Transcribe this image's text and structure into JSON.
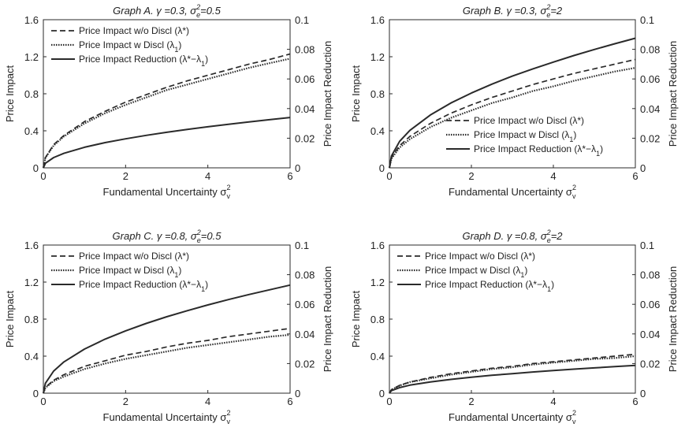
{
  "figure": {
    "background": "#ffffff",
    "line_color": "#2a2a2a"
  },
  "chart_data": [
    {
      "type": "line",
      "title": "Graph A. γ =0.3, σe2=0.5",
      "title_parts": {
        "prefix": "Graph A. γ =0.3, σ",
        "sub": "e",
        "sup": "2",
        "suffix": "=0.5"
      },
      "xlabel": "Fundamental Uncertainty σv2",
      "xlabel_parts": {
        "main": "Fundamental Uncertainty σ",
        "sub": "v",
        "sup": "2"
      },
      "ylabel": "Price Impact",
      "y2label": "Price Impact Reduction",
      "xlim": [
        0,
        6
      ],
      "ylim": [
        0,
        1.6
      ],
      "y2lim": [
        0,
        0.1
      ],
      "xticks": [
        "0",
        "2",
        "4",
        "6"
      ],
      "yticks": [
        "0",
        "0.4",
        "0.8",
        "1.2",
        "1.6"
      ],
      "y2ticks": [
        "0",
        "0.02",
        "0.04",
        "0.06",
        "0.08",
        "0.1"
      ],
      "legend_position": "top-left",
      "grid": false,
      "series": [
        {
          "name": "Price Impact w/o Discl (λ*)",
          "axis": "left",
          "style": "dashed",
          "x": [
            0,
            0.05,
            0.25,
            0.5,
            1,
            1.5,
            2,
            2.5,
            3,
            3.5,
            4,
            4.5,
            5,
            5.5,
            6
          ],
          "y": [
            0,
            0.11,
            0.25,
            0.35,
            0.5,
            0.61,
            0.71,
            0.79,
            0.87,
            0.94,
            1.0,
            1.06,
            1.12,
            1.17,
            1.23
          ]
        },
        {
          "name": "Price Impact w Discl (λ1)",
          "axis": "left",
          "style": "dotted",
          "x": [
            0,
            0.05,
            0.25,
            0.5,
            1,
            1.5,
            2,
            2.5,
            3,
            3.5,
            4,
            4.5,
            5,
            5.5,
            6
          ],
          "y": [
            0,
            0.11,
            0.24,
            0.34,
            0.48,
            0.59,
            0.68,
            0.76,
            0.84,
            0.9,
            0.96,
            1.02,
            1.08,
            1.13,
            1.18
          ]
        },
        {
          "name": "Price Impact Reduction (λ*−λ1)",
          "axis": "right",
          "style": "solid",
          "x": [
            0,
            0.05,
            0.25,
            0.5,
            1,
            1.5,
            2,
            2.5,
            3,
            3.5,
            4,
            4.5,
            5,
            5.5,
            6
          ],
          "y": [
            0,
            0.0031,
            0.0069,
            0.0098,
            0.0139,
            0.017,
            0.0196,
            0.0219,
            0.024,
            0.0259,
            0.0277,
            0.0294,
            0.031,
            0.0325,
            0.034
          ]
        }
      ]
    },
    {
      "type": "line",
      "title": "Graph B. γ =0.3, σe2=2",
      "title_parts": {
        "prefix": "Graph B. γ =0.3, σ",
        "sub": "e",
        "sup": "2",
        "suffix": "=2"
      },
      "xlabel": "Fundamental Uncertainty σv2",
      "xlabel_parts": {
        "main": "Fundamental Uncertainty σ",
        "sub": "v",
        "sup": "2"
      },
      "ylabel": "Price Impact",
      "y2label": "Price Impact Reduction",
      "xlim": [
        0,
        6
      ],
      "ylim": [
        0,
        1.6
      ],
      "y2lim": [
        0,
        0.1
      ],
      "xticks": [
        "0",
        "2",
        "4",
        "6"
      ],
      "yticks": [
        "0",
        "0.4",
        "0.8",
        "1.2",
        "1.6"
      ],
      "y2ticks": [
        "0",
        "0.02",
        "0.04",
        "0.06",
        "0.08",
        "0.1"
      ],
      "legend_position": "bottom-right",
      "grid": false,
      "series": [
        {
          "name": "Price Impact w/o Discl (λ*)",
          "axis": "left",
          "style": "dashed",
          "x": [
            0,
            0.05,
            0.25,
            0.5,
            1,
            1.5,
            2,
            2.5,
            3,
            3.5,
            4,
            4.5,
            5,
            5.5,
            6
          ],
          "y": [
            0,
            0.11,
            0.24,
            0.34,
            0.48,
            0.59,
            0.68,
            0.76,
            0.83,
            0.9,
            0.96,
            1.02,
            1.07,
            1.12,
            1.17
          ]
        },
        {
          "name": "Price Impact w Discl (λ1)",
          "axis": "left",
          "style": "dotted",
          "x": [
            0,
            0.05,
            0.25,
            0.5,
            1,
            1.5,
            2,
            2.5,
            3,
            3.5,
            4,
            4.5,
            5,
            5.5,
            6
          ],
          "y": [
            0,
            0.1,
            0.22,
            0.31,
            0.44,
            0.54,
            0.62,
            0.7,
            0.76,
            0.83,
            0.88,
            0.94,
            0.99,
            1.04,
            1.08
          ]
        },
        {
          "name": "Price Impact Reduction (λ*−λ1)",
          "axis": "right",
          "style": "solid",
          "x": [
            0,
            0.05,
            0.25,
            0.5,
            1,
            1.5,
            2,
            2.5,
            3,
            3.5,
            4,
            4.5,
            5,
            5.5,
            6
          ],
          "y": [
            0,
            0.008,
            0.0179,
            0.0253,
            0.0357,
            0.0438,
            0.0505,
            0.0565,
            0.0619,
            0.0668,
            0.0714,
            0.0758,
            0.0799,
            0.0838,
            0.0875
          ]
        }
      ]
    },
    {
      "type": "line",
      "title": "Graph C. γ =0.8, σe2=0.5",
      "title_parts": {
        "prefix": "Graph C. γ =0.8, σ",
        "sub": "e",
        "sup": "2",
        "suffix": "=0.5"
      },
      "xlabel": "Fundamental Uncertainty σv2",
      "xlabel_parts": {
        "main": "Fundamental Uncertainty σ",
        "sub": "v",
        "sup": "2"
      },
      "ylabel": "Price Impact",
      "y2label": "Price Impact Reduction",
      "xlim": [
        0,
        6
      ],
      "ylim": [
        0,
        1.6
      ],
      "y2lim": [
        0,
        0.1
      ],
      "xticks": [
        "0",
        "2",
        "4",
        "6"
      ],
      "yticks": [
        "0",
        "0.4",
        "0.8",
        "1.2",
        "1.6"
      ],
      "y2ticks": [
        "0",
        "0.02",
        "0.04",
        "0.06",
        "0.08",
        "0.1"
      ],
      "legend_position": "top-left",
      "grid": false,
      "series": [
        {
          "name": "Price Impact w/o Discl (λ*)",
          "axis": "left",
          "style": "dashed",
          "x": [
            0,
            0.05,
            0.25,
            0.5,
            1,
            1.5,
            2,
            2.5,
            3,
            3.5,
            4,
            4.5,
            5,
            5.5,
            6
          ],
          "y": [
            0,
            0.064,
            0.14,
            0.2,
            0.29,
            0.35,
            0.41,
            0.45,
            0.5,
            0.54,
            0.57,
            0.61,
            0.64,
            0.67,
            0.7
          ]
        },
        {
          "name": "Price Impact w Discl (λ1)",
          "axis": "left",
          "style": "dotted",
          "x": [
            0,
            0.05,
            0.25,
            0.5,
            1,
            1.5,
            2,
            2.5,
            3,
            3.5,
            4,
            4.5,
            5,
            5.5,
            6
          ],
          "y": [
            0,
            0.058,
            0.13,
            0.18,
            0.26,
            0.32,
            0.37,
            0.41,
            0.45,
            0.49,
            0.52,
            0.55,
            0.58,
            0.61,
            0.63
          ]
        },
        {
          "name": "Price Impact Reduction (λ*−λ1)",
          "axis": "right",
          "style": "solid",
          "x": [
            0,
            0.05,
            0.25,
            0.5,
            1,
            1.5,
            2,
            2.5,
            3,
            3.5,
            4,
            4.5,
            5,
            5.5,
            6
          ],
          "y": [
            0,
            0.0067,
            0.0149,
            0.0211,
            0.0298,
            0.0365,
            0.0421,
            0.0471,
            0.0516,
            0.0557,
            0.0596,
            0.0632,
            0.0666,
            0.0698,
            0.073
          ]
        }
      ]
    },
    {
      "type": "line",
      "title": "Graph D. γ =0.8, σe2=2",
      "title_parts": {
        "prefix": "Graph D. γ =0.8, σ",
        "sub": "e",
        "sup": "2",
        "suffix": "=2"
      },
      "xlabel": "Fundamental Uncertainty σv2",
      "xlabel_parts": {
        "main": "Fundamental Uncertainty σ",
        "sub": "v",
        "sup": "2"
      },
      "ylabel": "Price Impact",
      "y2label": "Price Impact Reduction",
      "xlim": [
        0,
        6
      ],
      "ylim": [
        0,
        1.6
      ],
      "y2lim": [
        0,
        0.1
      ],
      "xticks": [
        "0",
        "2",
        "4",
        "6"
      ],
      "yticks": [
        "0",
        "0.4",
        "0.8",
        "1.2",
        "1.6"
      ],
      "y2ticks": [
        "0",
        "0.02",
        "0.04",
        "0.06",
        "0.08",
        "0.1"
      ],
      "legend_position": "top-left",
      "grid": false,
      "series": [
        {
          "name": "Price Impact w/o Discl (λ*)",
          "axis": "left",
          "style": "dashed",
          "x": [
            0,
            0.05,
            0.25,
            0.5,
            1,
            1.5,
            2,
            2.5,
            3,
            3.5,
            4,
            4.5,
            5,
            5.5,
            6
          ],
          "y": [
            0,
            0.038,
            0.085,
            0.12,
            0.17,
            0.21,
            0.24,
            0.27,
            0.29,
            0.32,
            0.34,
            0.36,
            0.38,
            0.4,
            0.42
          ]
        },
        {
          "name": "Price Impact w Discl (λ1)",
          "axis": "left",
          "style": "dotted",
          "x": [
            0,
            0.05,
            0.25,
            0.5,
            1,
            1.5,
            2,
            2.5,
            3,
            3.5,
            4,
            4.5,
            5,
            5.5,
            6
          ],
          "y": [
            0,
            0.037,
            0.082,
            0.12,
            0.16,
            0.2,
            0.23,
            0.26,
            0.28,
            0.31,
            0.33,
            0.35,
            0.37,
            0.38,
            0.4
          ]
        },
        {
          "name": "Price Impact Reduction (λ*−λ1)",
          "axis": "right",
          "style": "solid",
          "x": [
            0,
            0.05,
            0.25,
            0.5,
            1,
            1.5,
            2,
            2.5,
            3,
            3.5,
            4,
            4.5,
            5,
            5.5,
            6
          ],
          "y": [
            0,
            0.0017,
            0.0038,
            0.0054,
            0.0076,
            0.0093,
            0.0108,
            0.0121,
            0.0132,
            0.0143,
            0.0153,
            0.0162,
            0.0171,
            0.0179,
            0.0187
          ]
        }
      ]
    }
  ]
}
